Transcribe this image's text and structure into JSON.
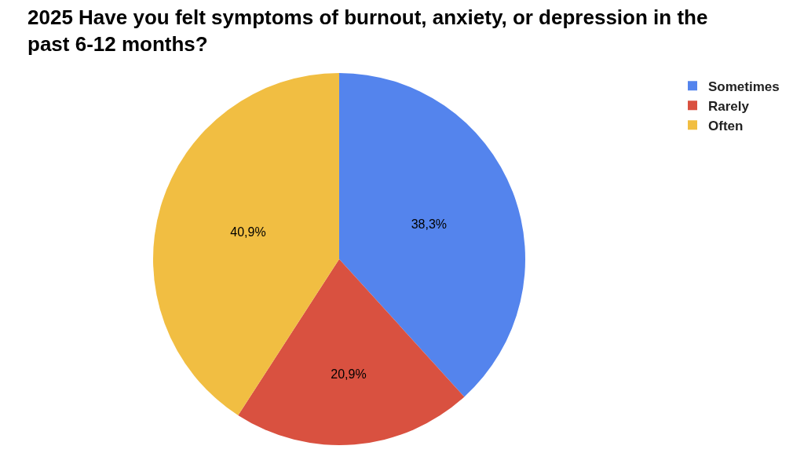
{
  "chart_data": {
    "type": "pie",
    "title": "2025 Have you felt symptoms of burnout, anxiety, or depression in the past 6-12 months?",
    "categories": [
      "Sometimes",
      "Rarely",
      "Often"
    ],
    "values": [
      38.3,
      20.9,
      40.9
    ],
    "colors": [
      "#5484ed",
      "#d95140",
      "#f1be42"
    ],
    "value_labels": [
      "38,3%",
      "20,9%",
      "40,9%"
    ],
    "legend": "top right"
  }
}
